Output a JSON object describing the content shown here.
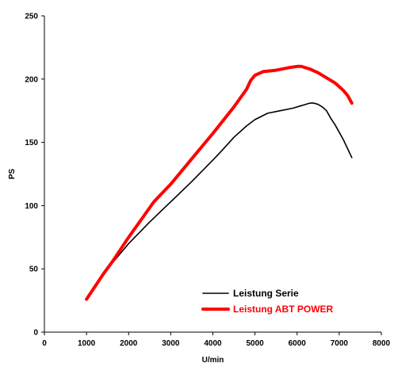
{
  "chart_data": {
    "type": "line",
    "title": "",
    "xlabel": "U/min",
    "ylabel": "PS",
    "xlim": [
      0,
      8000
    ],
    "ylim": [
      0,
      250
    ],
    "xticks": [
      0,
      1000,
      2000,
      3000,
      4000,
      5000,
      6000,
      7000,
      8000
    ],
    "yticks": [
      0,
      50,
      100,
      150,
      200,
      250
    ],
    "grid": false,
    "legend_position": "bottom-right",
    "series": [
      {
        "name": "Leistung Serie",
        "color": "#000000",
        "line_width": "thin",
        "x": [
          1000,
          1200,
          1400,
          1600,
          1800,
          2000,
          2500,
          3000,
          3500,
          4000,
          4200,
          4500,
          4800,
          5000,
          5300,
          5600,
          5900,
          6100,
          6300,
          6400,
          6500,
          6600,
          6700,
          6800,
          6900,
          7000,
          7100,
          7300
        ],
        "y": [
          26,
          35,
          45,
          54,
          62,
          70,
          87,
          103,
          119,
          136,
          143,
          154,
          163,
          168,
          173,
          175,
          177,
          179,
          181,
          181,
          180,
          178,
          175,
          169,
          164,
          158,
          152,
          138
        ]
      },
      {
        "name": "Leistung ABT POWER",
        "color": "#ff0000",
        "line_width": "thick",
        "x": [
          1000,
          1200,
          1400,
          1600,
          1800,
          2000,
          2300,
          2600,
          3000,
          3500,
          4000,
          4500,
          4800,
          4900,
          5000,
          5200,
          5500,
          5800,
          6000,
          6100,
          6200,
          6300,
          6500,
          6700,
          6900,
          7000,
          7100,
          7200,
          7300
        ],
        "y": [
          26,
          36,
          46,
          55,
          65,
          75,
          89,
          103,
          117,
          137,
          157,
          178,
          192,
          199,
          203,
          206,
          207,
          209,
          210,
          210,
          209,
          208,
          205,
          201,
          197,
          194,
          191,
          187,
          181
        ]
      }
    ]
  }
}
